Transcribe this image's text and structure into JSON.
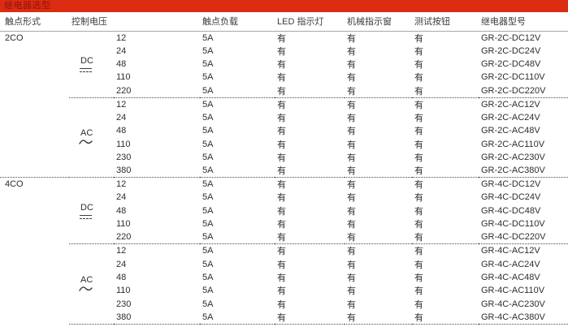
{
  "title": "继电器选型",
  "colors": {
    "title_bar_bg": "#dc2c12",
    "title_text": "#8e150b",
    "body_text": "#2e2e2e",
    "header_rule_solid": "#a8a8a8",
    "separator_dotted": "#4a4a4a"
  },
  "headers": {
    "contact_form": "触点形式",
    "control_voltage": "控制电压",
    "contact_load": "触点负载",
    "led_indicator": "LED 指示灯",
    "mechanical_window": "机械指示窗",
    "test_button": "测试按钮",
    "relay_model": "继电器型号"
  },
  "icons": {
    "dc_symbol": "dc-symbol-icon (solid line over dashed line ⎓)",
    "ac_symbol": "ac-wave-icon (tilde ∼)"
  },
  "table": {
    "sections": [
      {
        "contact_form": "2CO",
        "groups": [
          {
            "label": "DC",
            "symbol_icon": "dc-symbol",
            "rows": [
              {
                "voltage": "12",
                "load": "5A",
                "led": "有",
                "mech": "有",
                "test": "有",
                "model": "GR-2C-DC12V"
              },
              {
                "voltage": "24",
                "load": "5A",
                "led": "有",
                "mech": "有",
                "test": "有",
                "model": "GR-2C-DC24V"
              },
              {
                "voltage": "48",
                "load": "5A",
                "led": "有",
                "mech": "有",
                "test": "有",
                "model": "GR-2C-DC48V"
              },
              {
                "voltage": "110",
                "load": "5A",
                "led": "有",
                "mech": "有",
                "test": "有",
                "model": "GR-2C-DC110V"
              },
              {
                "voltage": "220",
                "load": "5A",
                "led": "有",
                "mech": "有",
                "test": "有",
                "model": "GR-2C-DC220V"
              }
            ]
          },
          {
            "label": "AC",
            "symbol_icon": "ac-wave",
            "rows": [
              {
                "voltage": "12",
                "load": "5A",
                "led": "有",
                "mech": "有",
                "test": "有",
                "model": "GR-2C-AC12V"
              },
              {
                "voltage": "24",
                "load": "5A",
                "led": "有",
                "mech": "有",
                "test": "有",
                "model": "GR-2C-AC24V"
              },
              {
                "voltage": "48",
                "load": "5A",
                "led": "有",
                "mech": "有",
                "test": "有",
                "model": "GR-2C-AC48V"
              },
              {
                "voltage": "110",
                "load": "5A",
                "led": "有",
                "mech": "有",
                "test": "有",
                "model": "GR-2C-AC110V"
              },
              {
                "voltage": "230",
                "load": "5A",
                "led": "有",
                "mech": "有",
                "test": "有",
                "model": "GR-2C-AC230V"
              },
              {
                "voltage": "380",
                "load": "5A",
                "led": "有",
                "mech": "有",
                "test": "有",
                "model": "GR-2C-AC380V"
              }
            ]
          }
        ]
      },
      {
        "contact_form": "4CO",
        "groups": [
          {
            "label": "DC",
            "symbol_icon": "dc-symbol",
            "rows": [
              {
                "voltage": "12",
                "load": "5A",
                "led": "有",
                "mech": "有",
                "test": "有",
                "model": "GR-4C-DC12V"
              },
              {
                "voltage": "24",
                "load": "5A",
                "led": "有",
                "mech": "有",
                "test": "有",
                "model": "GR-4C-DC24V"
              },
              {
                "voltage": "48",
                "load": "5A",
                "led": "有",
                "mech": "有",
                "test": "有",
                "model": "GR-4C-DC48V"
              },
              {
                "voltage": "110",
                "load": "5A",
                "led": "有",
                "mech": "有",
                "test": "有",
                "model": "GR-4C-DC110V"
              },
              {
                "voltage": "220",
                "load": "5A",
                "led": "有",
                "mech": "有",
                "test": "有",
                "model": "GR-4C-DC220V"
              }
            ]
          },
          {
            "label": "AC",
            "symbol_icon": "ac-wave",
            "rows": [
              {
                "voltage": "12",
                "load": "5A",
                "led": "有",
                "mech": "有",
                "test": "有",
                "model": "GR-4C-AC12V"
              },
              {
                "voltage": "24",
                "load": "5A",
                "led": "有",
                "mech": "有",
                "test": "有",
                "model": "GR-4C-AC24V"
              },
              {
                "voltage": "48",
                "load": "5A",
                "led": "有",
                "mech": "有",
                "test": "有",
                "model": "GR-4C-AC48V"
              },
              {
                "voltage": "110",
                "load": "5A",
                "led": "有",
                "mech": "有",
                "test": "有",
                "model": "GR-4C-AC110V"
              },
              {
                "voltage": "230",
                "load": "5A",
                "led": "有",
                "mech": "有",
                "test": "有",
                "model": "GR-4C-AC230V"
              },
              {
                "voltage": "380",
                "load": "5A",
                "led": "有",
                "mech": "有",
                "test": "有",
                "model": "GR-4C-AC380V"
              }
            ]
          }
        ]
      }
    ]
  }
}
